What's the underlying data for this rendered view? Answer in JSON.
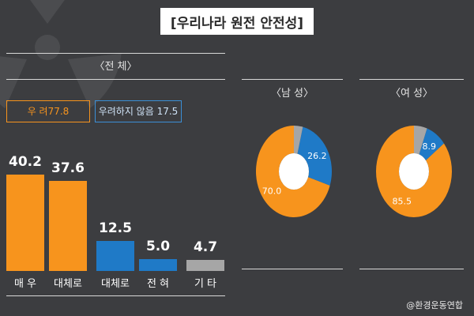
{
  "title": "[우리나라 원전 안전성]",
  "source": "@환경운동연합",
  "colors": {
    "orange": "#f7941d",
    "blue": "#1f7ac7",
    "gray": "#a6a6a6"
  },
  "chart_data": [
    {
      "type": "bar",
      "title": "〈전 체〉",
      "categories": [
        "매 우",
        "대체로",
        "대체로",
        "전 혀",
        "기 타"
      ],
      "values": [
        40.2,
        37.6,
        12.5,
        5.0,
        4.7
      ],
      "value_labels": [
        "40.2",
        "37.6",
        "12.5",
        "5.0",
        "4.7"
      ],
      "groups": [
        {
          "label": "우 려77.8",
          "color": "#f7941d"
        },
        {
          "label": "우려하지 않음 17.5",
          "color": "#1f7ac7"
        }
      ],
      "ylim": [
        0,
        45
      ]
    },
    {
      "type": "pie",
      "title": "〈남 성〉",
      "values": [
        70.0,
        26.2,
        3.8
      ],
      "labels": [
        "70.0",
        "26.2",
        ""
      ],
      "colors": [
        "#f7941d",
        "#1f7ac7",
        "#a6a6a6"
      ]
    },
    {
      "type": "pie",
      "title": "〈여 성〉",
      "values": [
        85.5,
        8.9,
        5.6
      ],
      "labels": [
        "85.5",
        "8.9",
        ""
      ],
      "colors": [
        "#f7941d",
        "#1f7ac7",
        "#a6a6a6"
      ]
    }
  ]
}
